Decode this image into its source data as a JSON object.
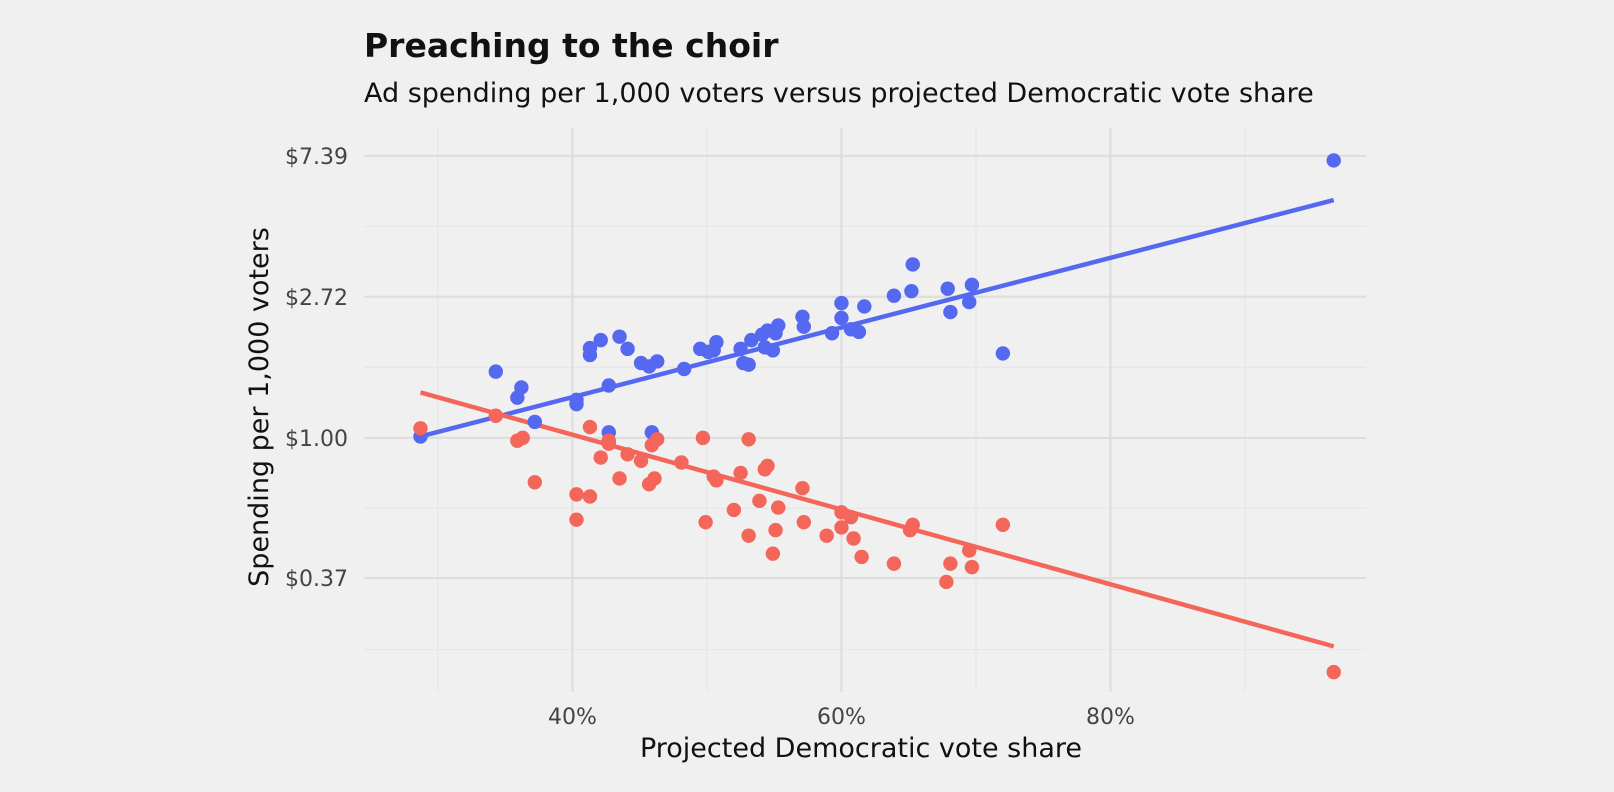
{
  "colors": {
    "background": "#f0f0f0",
    "blue": "#5468f0",
    "red": "#f4655a"
  },
  "chart_data": {
    "type": "scatter",
    "title": "Preaching to the choir",
    "subtitle": "Ad spending per 1,000 voters versus projected Democratic vote share",
    "xlabel": "Projected Democratic vote share",
    "ylabel": "Spending per 1,000 voters",
    "x_scale": "linear",
    "y_scale": "log",
    "xlim": [
      0.245,
      0.99
    ],
    "ylim": [
      0.165,
      9.0
    ],
    "x_ticks": [
      0.4,
      0.6,
      0.8
    ],
    "x_tick_labels": [
      "40%",
      "60%",
      "80%"
    ],
    "x_minor_ticks": [
      0.3,
      0.5,
      0.7,
      0.9
    ],
    "y_ticks": [
      0.37,
      1.0,
      2.72,
      7.39
    ],
    "y_tick_labels": [
      "$0.37",
      "$1.00",
      "$2.72",
      "$7.39"
    ],
    "y_minor_ticks": [
      0.223,
      0.607,
      1.65,
      4.48
    ],
    "grid": true,
    "legend": "none",
    "series": [
      {
        "color": "#5468f0",
        "trend_line": {
          "x": [
            0.287,
            0.966
          ],
          "y": [
            1.01,
            5.4
          ]
        },
        "points": [
          [
            0.287,
            1.01
          ],
          [
            0.343,
            1.6
          ],
          [
            0.359,
            1.33
          ],
          [
            0.362,
            1.43
          ],
          [
            0.372,
            1.12
          ],
          [
            0.403,
            1.31
          ],
          [
            0.403,
            1.27
          ],
          [
            0.413,
            1.8
          ],
          [
            0.413,
            1.89
          ],
          [
            0.421,
            2.0
          ],
          [
            0.427,
            1.45
          ],
          [
            0.427,
            1.04
          ],
          [
            0.435,
            2.05
          ],
          [
            0.441,
            1.88
          ],
          [
            0.451,
            1.7
          ],
          [
            0.457,
            1.66
          ],
          [
            0.459,
            1.04
          ],
          [
            0.463,
            1.72
          ],
          [
            0.483,
            1.63
          ],
          [
            0.495,
            1.88
          ],
          [
            0.501,
            1.84
          ],
          [
            0.505,
            1.86
          ],
          [
            0.507,
            1.97
          ],
          [
            0.525,
            1.88
          ],
          [
            0.527,
            1.7
          ],
          [
            0.531,
            1.68
          ],
          [
            0.533,
            2.0
          ],
          [
            0.541,
            2.08
          ],
          [
            0.543,
            1.9
          ],
          [
            0.545,
            2.14
          ],
          [
            0.549,
            1.86
          ],
          [
            0.551,
            2.1
          ],
          [
            0.553,
            2.22
          ],
          [
            0.571,
            2.36
          ],
          [
            0.572,
            2.2
          ],
          [
            0.593,
            2.1
          ],
          [
            0.6,
            2.6
          ],
          [
            0.6,
            2.34
          ],
          [
            0.607,
            2.16
          ],
          [
            0.613,
            2.12
          ],
          [
            0.617,
            2.54
          ],
          [
            0.639,
            2.74
          ],
          [
            0.652,
            2.83
          ],
          [
            0.653,
            3.42
          ],
          [
            0.679,
            2.88
          ],
          [
            0.681,
            2.44
          ],
          [
            0.695,
            2.62
          ],
          [
            0.697,
            2.96
          ],
          [
            0.72,
            1.82
          ],
          [
            0.966,
            7.15
          ]
        ]
      },
      {
        "color": "#f4655a",
        "trend_line": {
          "x": [
            0.287,
            0.966
          ],
          "y": [
            1.38,
            0.228
          ]
        },
        "points": [
          [
            0.287,
            1.07
          ],
          [
            0.343,
            1.17
          ],
          [
            0.359,
            0.98
          ],
          [
            0.363,
            1.0
          ],
          [
            0.372,
            0.73
          ],
          [
            0.403,
            0.67
          ],
          [
            0.403,
            0.56
          ],
          [
            0.413,
            0.66
          ],
          [
            0.413,
            1.08
          ],
          [
            0.421,
            0.87
          ],
          [
            0.427,
            0.98
          ],
          [
            0.427,
            0.96
          ],
          [
            0.435,
            0.75
          ],
          [
            0.441,
            0.89
          ],
          [
            0.451,
            0.85
          ],
          [
            0.457,
            0.72
          ],
          [
            0.459,
            0.95
          ],
          [
            0.461,
            0.75
          ],
          [
            0.463,
            0.99
          ],
          [
            0.481,
            0.84
          ],
          [
            0.497,
            1.0
          ],
          [
            0.499,
            0.55
          ],
          [
            0.505,
            0.76
          ],
          [
            0.507,
            0.74
          ],
          [
            0.52,
            0.6
          ],
          [
            0.525,
            0.78
          ],
          [
            0.531,
            0.99
          ],
          [
            0.531,
            0.5
          ],
          [
            0.539,
            0.64
          ],
          [
            0.543,
            0.8
          ],
          [
            0.545,
            0.82
          ],
          [
            0.549,
            0.44
          ],
          [
            0.551,
            0.52
          ],
          [
            0.553,
            0.61
          ],
          [
            0.571,
            0.7
          ],
          [
            0.572,
            0.55
          ],
          [
            0.589,
            0.5
          ],
          [
            0.6,
            0.53
          ],
          [
            0.6,
            0.59
          ],
          [
            0.607,
            0.57
          ],
          [
            0.609,
            0.49
          ],
          [
            0.615,
            0.43
          ],
          [
            0.639,
            0.41
          ],
          [
            0.651,
            0.52
          ],
          [
            0.653,
            0.54
          ],
          [
            0.678,
            0.36
          ],
          [
            0.681,
            0.41
          ],
          [
            0.695,
            0.45
          ],
          [
            0.697,
            0.4
          ],
          [
            0.72,
            0.54
          ],
          [
            0.966,
            0.19
          ]
        ]
      }
    ]
  }
}
